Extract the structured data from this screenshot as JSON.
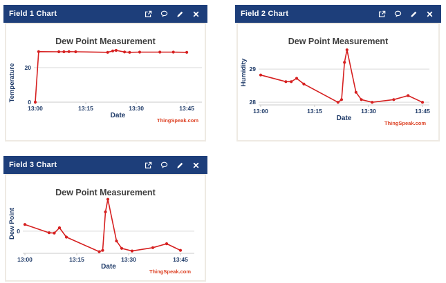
{
  "page": {
    "background": "#ffffff"
  },
  "colors": {
    "header_bg": "#1d3e7a",
    "header_text": "#ffffff",
    "panel_border": "#eeeae3",
    "line": "#d62020",
    "grid": "#d9d9d9",
    "axis_line": "#c9c9c9",
    "navy_text": "#1e3a68",
    "chart_title_text": "#3d3d3d",
    "credit_text": "#dd4124"
  },
  "widgets": [
    {
      "title": "Field 1 Chart",
      "header_icons": [
        "open-in-new-icon",
        "comment-icon",
        "edit-icon",
        "close-icon"
      ]
    },
    {
      "title": "Field 2 Chart",
      "header_icons": [
        "open-in-new-icon",
        "comment-icon",
        "edit-icon",
        "close-icon"
      ]
    },
    {
      "title": "Field 3 Chart",
      "header_icons": [
        "open-in-new-icon",
        "comment-icon",
        "edit-icon",
        "close-icon"
      ]
    }
  ],
  "chart_data": [
    {
      "type": "line",
      "widget": "Field 1 Chart",
      "title": "Dew Point Measurement",
      "xlabel": "Date",
      "ylabel": "Temperature",
      "credit": "ThingSpeak.com",
      "line_color": "#d62020",
      "legend": "none",
      "grid": "horizontal-only",
      "x_start_time": "13:00",
      "x_minutes": [
        0,
        1,
        7,
        8.5,
        10,
        12,
        21.5,
        23,
        24,
        26.5,
        28,
        31,
        37,
        41,
        45
      ],
      "values": [
        0,
        29.3,
        29.2,
        29.2,
        29.3,
        29.2,
        28.9,
        29.7,
        30.0,
        29.1,
        28.9,
        29.0,
        29.0,
        29.0,
        28.9
      ],
      "xticks": [
        {
          "minute": 0,
          "label": "13:00"
        },
        {
          "minute": 15,
          "label": "13:15"
        },
        {
          "minute": 30,
          "label": "13:30"
        },
        {
          "minute": 45,
          "label": "13:45"
        }
      ],
      "yticks": [
        {
          "value": 0,
          "label": "0"
        },
        {
          "value": 20,
          "label": "20"
        }
      ],
      "ylim": [
        0,
        34
      ]
    },
    {
      "type": "line",
      "widget": "Field 2 Chart",
      "title": "Dew Point Measurement",
      "xlabel": "Date",
      "ylabel": "Humidity",
      "credit": "ThingSpeak.com",
      "line_color": "#d62020",
      "legend": "none",
      "grid": "horizontal-only",
      "x_start_time": "13:00",
      "x_minutes": [
        0,
        7,
        8.5,
        10,
        12,
        21.5,
        22.5,
        23.3,
        24,
        26.5,
        28,
        31,
        37,
        41,
        45
      ],
      "values": [
        28.82,
        28.62,
        28.62,
        28.72,
        28.55,
        28.0,
        28.08,
        29.2,
        29.58,
        28.3,
        28.08,
        28.0,
        28.08,
        28.2,
        28.0
      ],
      "xticks": [
        {
          "minute": 0,
          "label": "13:00"
        },
        {
          "minute": 15,
          "label": "13:15"
        },
        {
          "minute": 30,
          "label": "13:30"
        },
        {
          "minute": 45,
          "label": "13:45"
        }
      ],
      "yticks": [
        {
          "value": 28,
          "label": "28"
        },
        {
          "value": 29,
          "label": "29"
        }
      ],
      "ylim": [
        27.92,
        29.75
      ]
    },
    {
      "type": "line",
      "widget": "Field 3 Chart",
      "title": "Dew Point Measurement",
      "xlabel": "Date",
      "ylabel": "Dew Point",
      "credit": "ThingSpeak.com",
      "line_color": "#d62020",
      "legend": "none",
      "grid": "horizontal-only",
      "x_start_time": "13:00",
      "x_minutes": [
        0,
        7,
        8.5,
        10,
        12,
        21.5,
        22.5,
        23.3,
        24,
        26.5,
        28,
        31,
        37,
        41,
        45
      ],
      "values": [
        0.2,
        -0.05,
        -0.06,
        0.1,
        -0.18,
        -0.62,
        -0.58,
        0.58,
        0.96,
        -0.3,
        -0.52,
        -0.6,
        -0.5,
        -0.38,
        -0.58
      ],
      "xticks": [
        {
          "minute": 0,
          "label": "13:00"
        },
        {
          "minute": 15,
          "label": "13:15"
        },
        {
          "minute": 30,
          "label": "13:30"
        },
        {
          "minute": 45,
          "label": "13:45"
        }
      ],
      "yticks": [
        {
          "value": 0,
          "label": "0"
        }
      ],
      "ylim": [
        -0.67,
        1.1
      ]
    }
  ]
}
